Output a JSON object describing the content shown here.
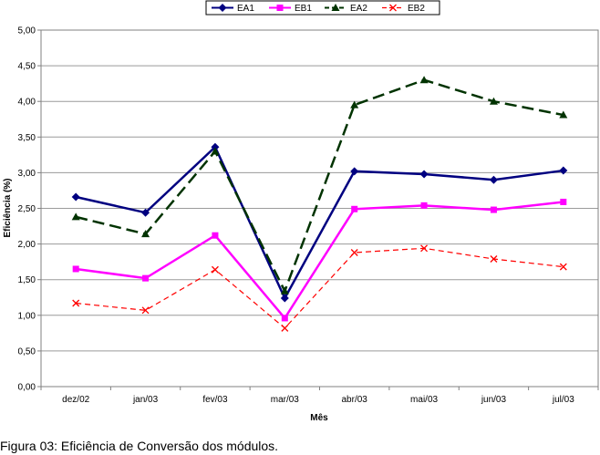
{
  "caption": "Figura 03: Eficiência de Conversão dos módulos.",
  "chart_data": {
    "type": "line",
    "title": "",
    "xlabel": "Mês",
    "ylabel": "Eficiência (%)",
    "ylim": [
      0,
      5
    ],
    "ystep": 0.5,
    "yticks": [
      "0,00",
      "0,50",
      "1,00",
      "1,50",
      "2,00",
      "2,50",
      "3,00",
      "3,50",
      "4,00",
      "4,50",
      "5,00"
    ],
    "grid": "horizontal",
    "legend_position": "top",
    "categories": [
      "dez/02",
      "jan/03",
      "fev/03",
      "mar/03",
      "abr/03",
      "mai/03",
      "jun/03",
      "jul/03"
    ],
    "series": [
      {
        "name": "EA1",
        "color": "#000080",
        "line": "solid",
        "marker": "diamond",
        "values": [
          2.66,
          2.44,
          3.36,
          1.24,
          3.02,
          2.98,
          2.9,
          3.03
        ]
      },
      {
        "name": "EB1",
        "color": "#ff00ff",
        "line": "solid",
        "marker": "square",
        "values": [
          1.65,
          1.52,
          2.12,
          0.96,
          2.49,
          2.54,
          2.48,
          2.59
        ]
      },
      {
        "name": "EA2",
        "color": "#003300",
        "line": "dashed",
        "marker": "triangle",
        "values": [
          2.38,
          2.14,
          3.3,
          1.34,
          3.95,
          4.3,
          4.0,
          3.81
        ]
      },
      {
        "name": "EB2",
        "color": "#ff0000",
        "line": "dashed-thin",
        "marker": "x",
        "values": [
          1.17,
          1.07,
          1.64,
          0.82,
          1.88,
          1.94,
          1.79,
          1.68
        ]
      }
    ]
  }
}
